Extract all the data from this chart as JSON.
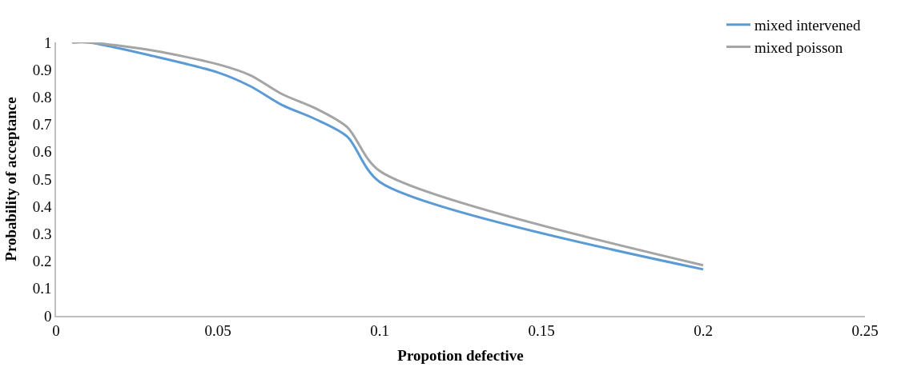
{
  "chart_data": {
    "type": "line",
    "xlabel": "Propotion defective",
    "ylabel": "Probability of acceptance",
    "x": [
      0.005,
      0.01,
      0.03,
      0.05,
      0.06,
      0.07,
      0.08,
      0.09,
      0.1,
      0.2
    ],
    "series": [
      {
        "name": "mixed intervened",
        "color": "#5b9bd5",
        "values": [
          1.0,
          1.0,
          0.95,
          0.89,
          0.84,
          0.77,
          0.72,
          0.655,
          0.49,
          0.17
        ]
      },
      {
        "name": "mixed poisson",
        "color": "#a5a5a5",
        "values": [
          1.0,
          1.0,
          0.97,
          0.92,
          0.88,
          0.81,
          0.76,
          0.69,
          0.53,
          0.185
        ]
      }
    ],
    "xlim": [
      0,
      0.25
    ],
    "xticks": [
      0,
      0.05,
      0.1,
      0.15,
      0.2,
      0.25
    ],
    "ylim": [
      0,
      1
    ],
    "yticks": [
      0,
      0.1,
      0.2,
      0.3,
      0.4,
      0.5,
      0.6,
      0.7,
      0.8,
      0.9,
      1
    ],
    "legend": "top right",
    "marker": "none",
    "line_style": "solid"
  }
}
